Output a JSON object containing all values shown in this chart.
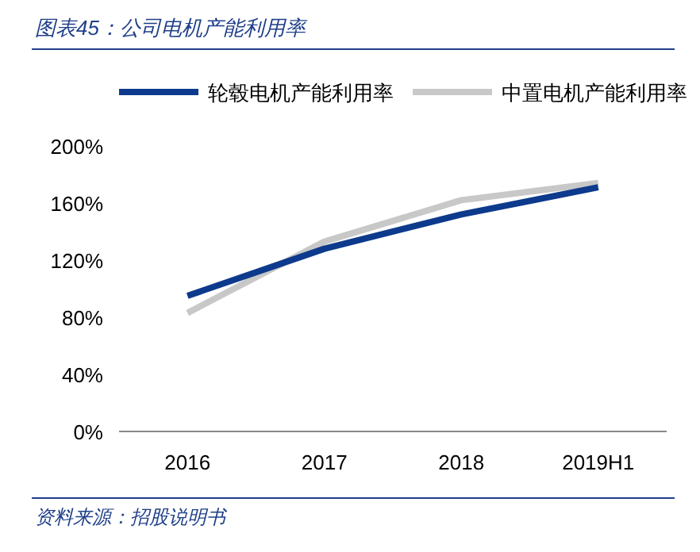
{
  "chart_data": {
    "type": "line",
    "title": "图表45：公司电机产能利用率",
    "categories": [
      "2016",
      "2017",
      "2018",
      "2019H1"
    ],
    "series": [
      {
        "name": "轮毂电机产能利用率",
        "color": "#0d3a8c",
        "values": [
          95,
          128,
          152,
          171
        ]
      },
      {
        "name": "中置电机产能利用率",
        "color": "#c8c8c8",
        "values": [
          83,
          133,
          162,
          174
        ]
      }
    ],
    "ylim": [
      0,
      200
    ],
    "yticks": [
      {
        "value": 0,
        "label": "0%"
      },
      {
        "value": 40,
        "label": "40%"
      },
      {
        "value": 80,
        "label": "80%"
      },
      {
        "value": 120,
        "label": "120%"
      },
      {
        "value": 160,
        "label": "160%"
      },
      {
        "value": 200,
        "label": "200%"
      }
    ],
    "grid": false,
    "legend": "top",
    "marker": "none",
    "line_style": "solid",
    "annotations": [
      "资料来源：招股说明书"
    ]
  }
}
